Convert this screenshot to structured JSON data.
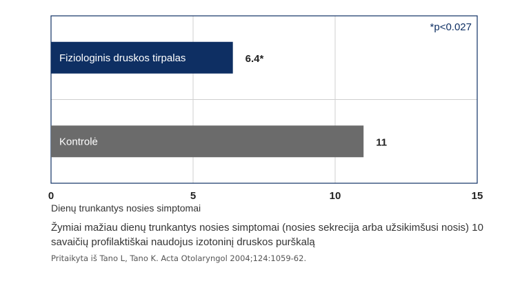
{
  "chart_data": {
    "type": "bar",
    "orientation": "horizontal",
    "categories": [
      "Fiziologinis druskos tirpalas",
      "Kontrolė"
    ],
    "values": [
      6.4,
      11
    ],
    "value_labels": [
      "6.4*",
      "11"
    ],
    "bar_colors": [
      "#0e2f63",
      "#6b6b6b"
    ],
    "axis_color": "#0e2f63",
    "grid_color": "#cfcfcf",
    "xlim": [
      0,
      15
    ],
    "xticks": [
      0,
      5,
      10,
      15
    ],
    "xlabel": "Dienų trunkantys nosies simptomai",
    "annotation": "*p<0.027",
    "grid": true
  },
  "caption": "Žymiai mažiau dienų trunkantys nosies simptomai (nosies sekrecija arba užsikimšusi nosis) 10 savaičių profilaktiškai naudojus izotoninį druskos purškalą",
  "source": "Pritaikyta iš Tano L, Tano K. Acta Otolaryngol 2004;124:1059-62."
}
